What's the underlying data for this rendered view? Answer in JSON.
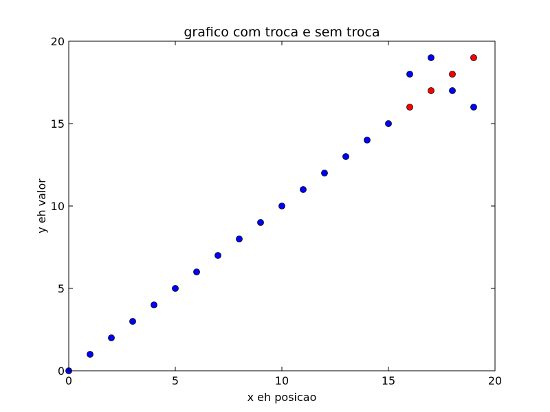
{
  "chart_data": {
    "type": "scatter",
    "title": "grafico com troca e sem troca",
    "xlabel": "x eh posicao",
    "ylabel": "y eh valor",
    "xlim": [
      0,
      20
    ],
    "ylim": [
      0,
      20
    ],
    "xticks": [
      "0",
      "5",
      "10",
      "15",
      "20"
    ],
    "yticks": [
      "0",
      "5",
      "10",
      "15",
      "20"
    ],
    "grid": false,
    "series": [
      {
        "color": "#ff0000",
        "marker": "circle",
        "points": [
          [
            16,
            16
          ],
          [
            17,
            17
          ],
          [
            18,
            18
          ],
          [
            19,
            19
          ]
        ]
      },
      {
        "color": "#0000ff",
        "marker": "circle",
        "points": [
          [
            0,
            0
          ],
          [
            1,
            1
          ],
          [
            2,
            2
          ],
          [
            3,
            3
          ],
          [
            4,
            4
          ],
          [
            5,
            5
          ],
          [
            6,
            6
          ],
          [
            7,
            7
          ],
          [
            8,
            8
          ],
          [
            9,
            9
          ],
          [
            10,
            10
          ],
          [
            11,
            11
          ],
          [
            12,
            12
          ],
          [
            13,
            13
          ],
          [
            14,
            14
          ],
          [
            15,
            15
          ],
          [
            16,
            18
          ],
          [
            17,
            19
          ],
          [
            18,
            17
          ],
          [
            19,
            16
          ]
        ]
      }
    ]
  }
}
